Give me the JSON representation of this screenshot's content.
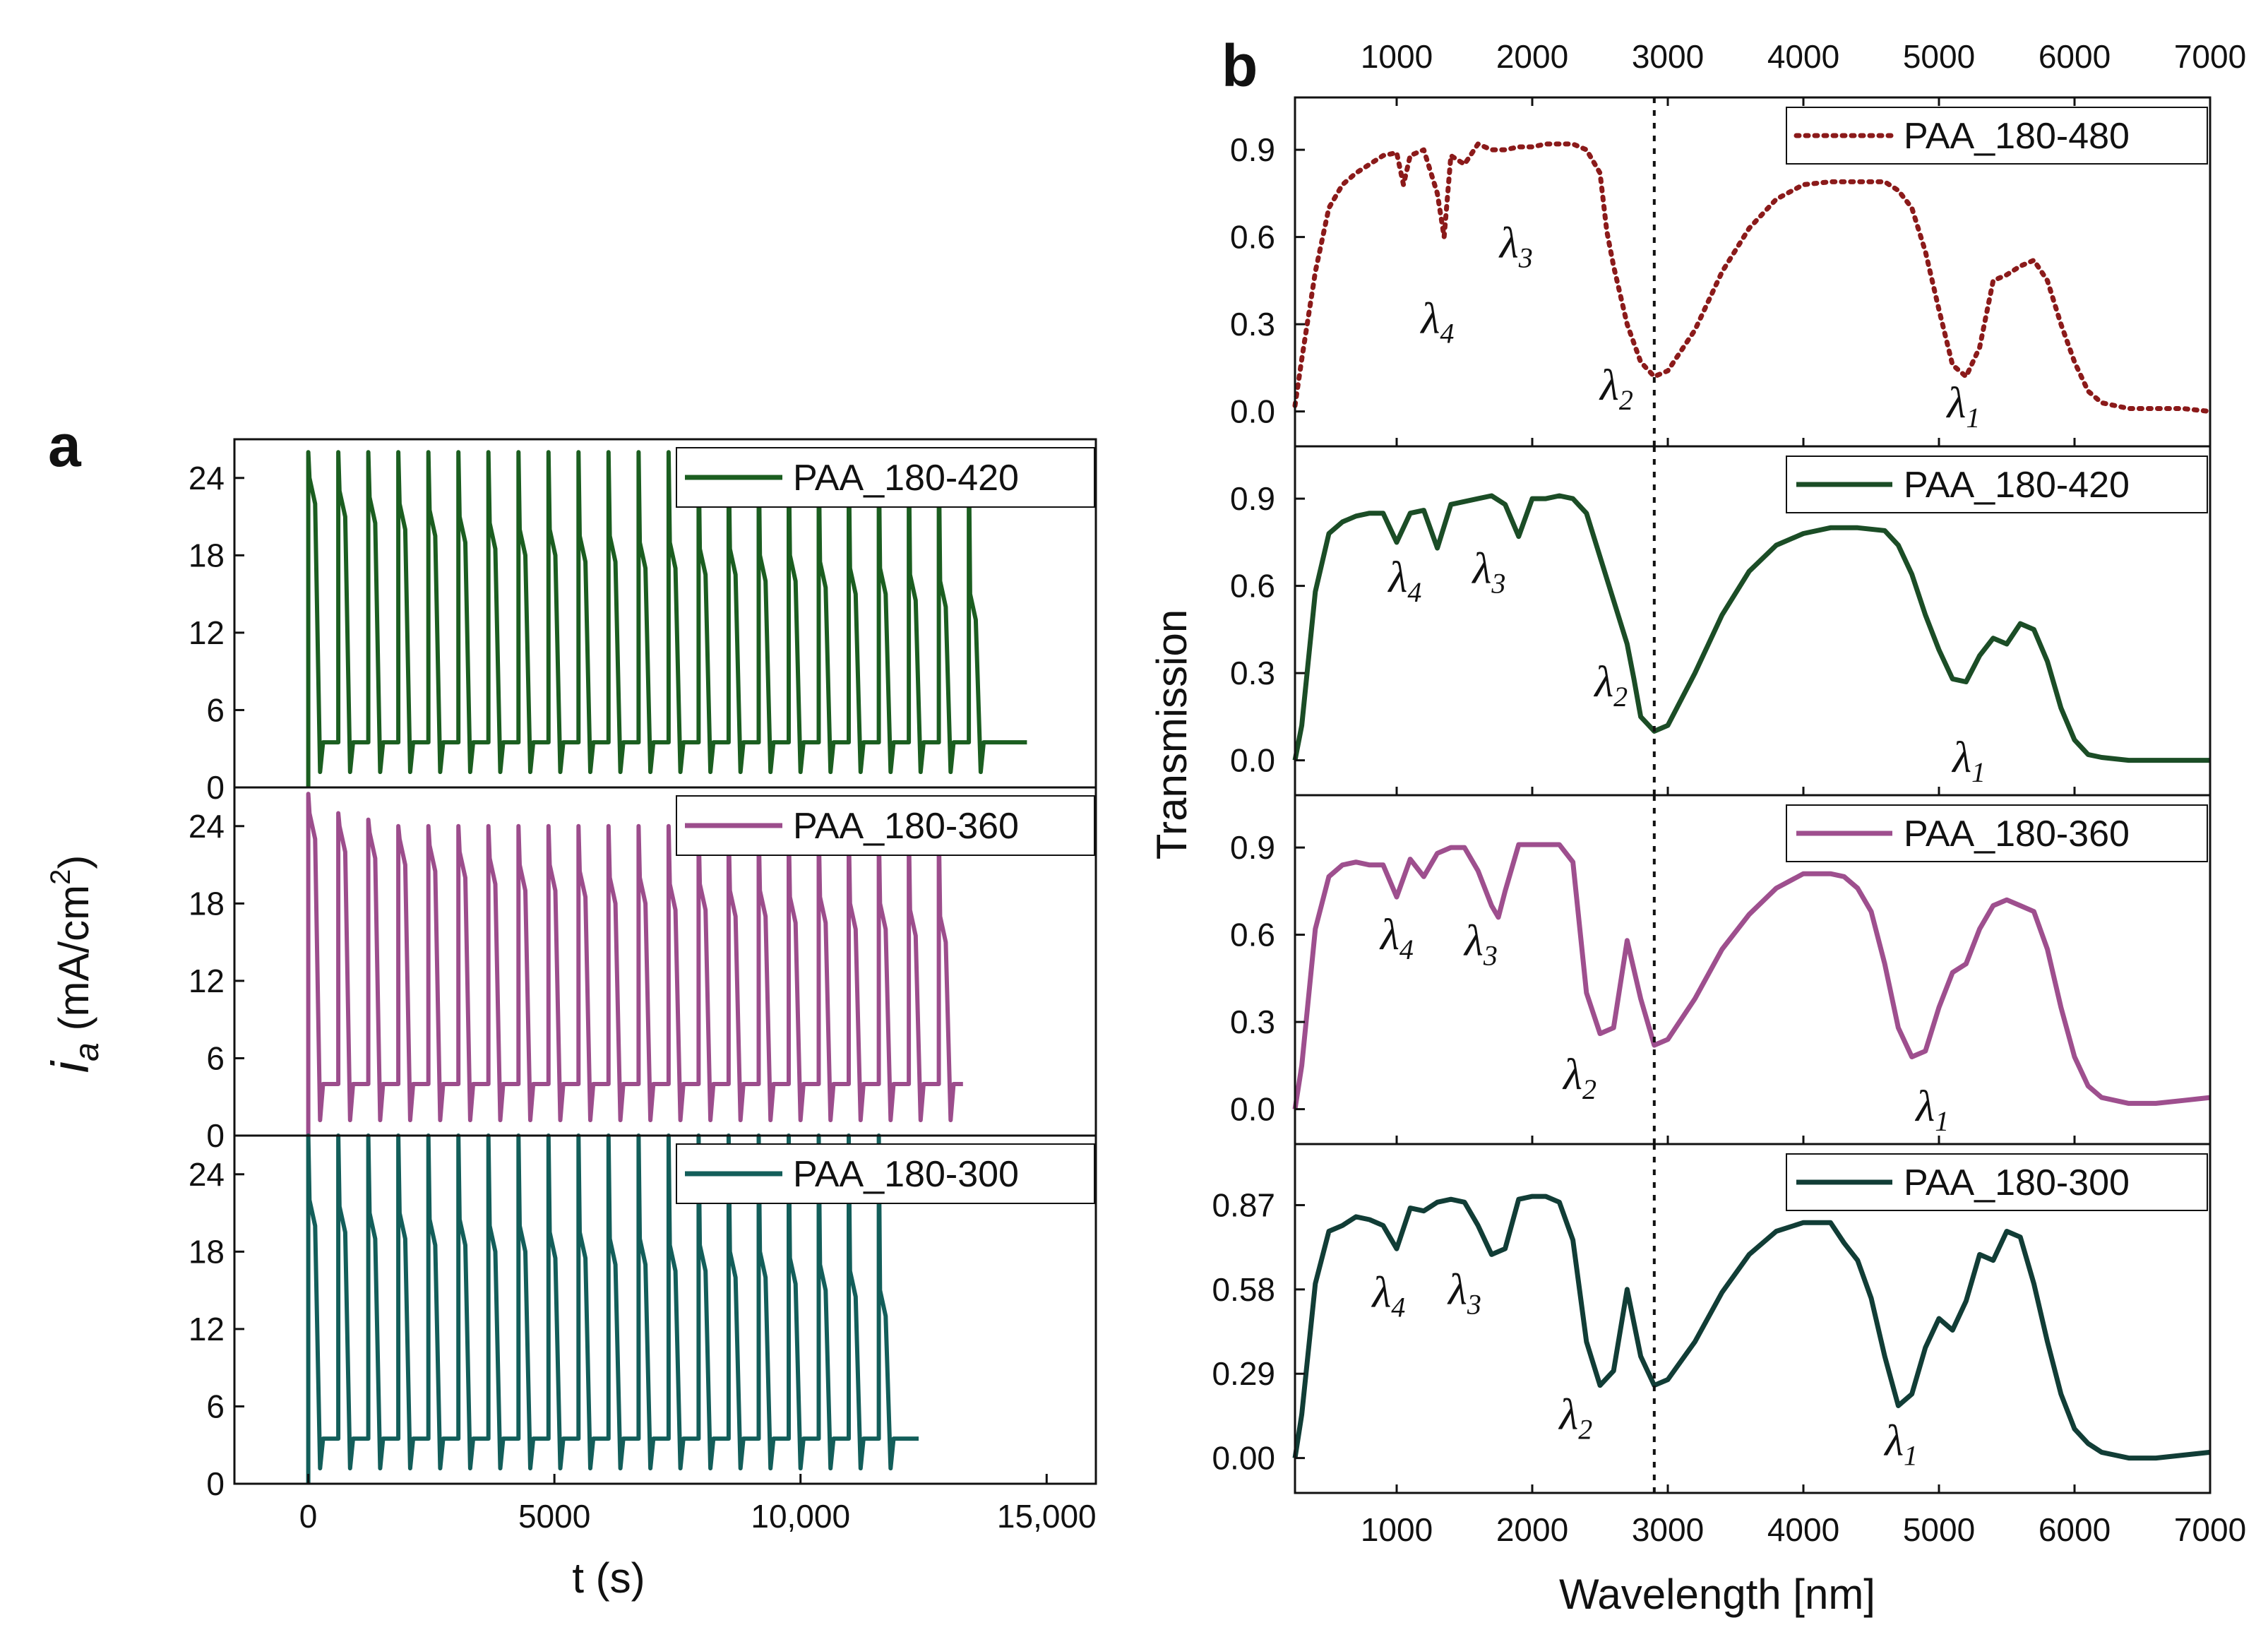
{
  "figure": {
    "label_a": "a",
    "label_b": "b"
  },
  "chart_data": [
    {
      "panel": "a",
      "type": "line",
      "xlabel": "t (s)",
      "ylabel": "i_a (mA/cm2)",
      "ylabel_parts": {
        "i": "i",
        "sub": "a",
        "unit": " (mA/cm",
        "sup": "2",
        "close": ")"
      },
      "xlim": [
        -1500,
        16000
      ],
      "xticks": [
        0,
        5000,
        10000,
        15000
      ],
      "xtick_labels": [
        "0",
        "5000",
        "10,000",
        "15,000"
      ],
      "subplots": [
        {
          "name": "PAA_180-420",
          "color": "#1b5e20",
          "ylim": [
            0,
            27
          ],
          "yticks": [
            0,
            6,
            12,
            18,
            24
          ],
          "pulse_period_s": 610,
          "pulse_count": 23,
          "end_time_s": 14600,
          "peak_values": [
            26,
            26,
            26,
            26,
            26,
            26,
            26,
            26,
            26,
            26,
            26,
            26,
            26,
            26,
            26,
            26,
            26,
            26,
            26,
            26,
            26,
            26,
            26
          ],
          "plateau_values": [
            22,
            21,
            20.5,
            20,
            19.5,
            19,
            18.5,
            18,
            18,
            17.5,
            17.5,
            17,
            17,
            16.5,
            16.5,
            16,
            16,
            15.5,
            15,
            15,
            14.5,
            14,
            13
          ],
          "baseline": 3.5
        },
        {
          "name": "PAA_180-360",
          "color": "#9c4d8c",
          "ylim": [
            0,
            27
          ],
          "yticks": [
            0,
            6,
            12,
            18,
            24
          ],
          "pulse_period_s": 610,
          "pulse_count": 22,
          "end_time_s": 13300,
          "peak_values": [
            26.5,
            25,
            24.5,
            24,
            24,
            24,
            24,
            24,
            24,
            24,
            24,
            24,
            24,
            24,
            24,
            24,
            24,
            24,
            24,
            24,
            24,
            24
          ],
          "plateau_values": [
            23,
            22,
            21.5,
            21,
            20.5,
            20,
            19.5,
            19,
            19,
            18.5,
            18,
            18,
            17.5,
            17.5,
            17,
            17,
            16.5,
            16.5,
            16,
            16,
            15.5,
            15
          ],
          "baseline": 4
        },
        {
          "name": "PAA_180-300",
          "color": "#135e5a",
          "ylim": [
            0,
            27
          ],
          "yticks": [
            0,
            6,
            12,
            18,
            24
          ],
          "pulse_period_s": 610,
          "pulse_count": 20,
          "end_time_s": 12400,
          "peak_values": [
            27,
            27,
            27,
            27,
            27,
            27,
            27,
            27,
            27,
            27,
            27,
            27,
            27,
            27,
            27,
            27,
            27,
            27,
            27,
            27
          ],
          "plateau_values": [
            20,
            19.5,
            19,
            19,
            18.5,
            18.5,
            18,
            18,
            17.5,
            17.5,
            17,
            17,
            16.5,
            16.5,
            16,
            16,
            15.5,
            15,
            14.5,
            13
          ],
          "baseline": 3.5
        }
      ]
    },
    {
      "panel": "b",
      "type": "line",
      "xlabel": "Wavelength [nm]",
      "ylabel": "Transmission",
      "xlim": [
        250,
        7000
      ],
      "xticks": [
        1000,
        2000,
        3000,
        4000,
        5000,
        6000,
        7000
      ],
      "xtick_labels": [
        "1000",
        "2000",
        "3000",
        "4000",
        "5000",
        "6000",
        "7000"
      ],
      "top_xtick_labels": [
        "1000",
        "2000",
        "3000",
        "4000",
        "5000",
        "6000",
        "7000"
      ],
      "dashed_reference_x": 2900,
      "subplots": [
        {
          "name": "PAA_180-480",
          "color": "#8b1a1a",
          "style": "dotted",
          "ylim": [
            -0.12,
            1.08
          ],
          "yticks": [
            0.0,
            0.3,
            0.6,
            0.9
          ],
          "ytick_labels": [
            "0.0",
            "0.3",
            "0.6",
            "0.9"
          ],
          "x": [
            250,
            300,
            400,
            500,
            600,
            700,
            800,
            900,
            1000,
            1050,
            1100,
            1200,
            1300,
            1350,
            1400,
            1500,
            1600,
            1700,
            1800,
            1900,
            2000,
            2100,
            2200,
            2300,
            2400,
            2500,
            2550,
            2600,
            2700,
            2800,
            2900,
            3000,
            3200,
            3400,
            3600,
            3800,
            4000,
            4200,
            4400,
            4600,
            4700,
            4800,
            4900,
            5000,
            5100,
            5200,
            5300,
            5400,
            5500,
            5600,
            5700,
            5800,
            5900,
            6000,
            6100,
            6200,
            6400,
            6600,
            6800,
            7000
          ],
          "y": [
            0.02,
            0.18,
            0.48,
            0.7,
            0.78,
            0.82,
            0.85,
            0.88,
            0.89,
            0.78,
            0.88,
            0.9,
            0.75,
            0.6,
            0.88,
            0.85,
            0.92,
            0.9,
            0.9,
            0.91,
            0.91,
            0.92,
            0.92,
            0.92,
            0.9,
            0.82,
            0.62,
            0.5,
            0.3,
            0.17,
            0.12,
            0.14,
            0.28,
            0.48,
            0.63,
            0.73,
            0.78,
            0.79,
            0.79,
            0.79,
            0.76,
            0.7,
            0.55,
            0.35,
            0.16,
            0.12,
            0.22,
            0.45,
            0.47,
            0.5,
            0.52,
            0.45,
            0.3,
            0.17,
            0.07,
            0.03,
            0.01,
            0.01,
            0.01,
            0.0
          ],
          "labels": [
            {
              "main": "λ",
              "sub": "4",
              "x": 1180,
              "y": 0.27
            },
            {
              "main": "λ",
              "sub": "3",
              "x": 1760,
              "y": 0.53
            },
            {
              "main": "λ",
              "sub": "2",
              "x": 2500,
              "y": 0.04
            },
            {
              "main": "λ",
              "sub": "1",
              "x": 5060,
              "y": -0.02
            }
          ]
        },
        {
          "name": "PAA_180-420",
          "color": "#1b4d26",
          "style": "solid",
          "ylim": [
            -0.12,
            1.08
          ],
          "yticks": [
            0.0,
            0.3,
            0.6,
            0.9
          ],
          "ytick_labels": [
            "0.0",
            "0.3",
            "0.6",
            "0.9"
          ],
          "x": [
            250,
            300,
            400,
            500,
            600,
            700,
            800,
            900,
            1000,
            1100,
            1200,
            1300,
            1400,
            1500,
            1600,
            1700,
            1800,
            1900,
            2000,
            2100,
            2200,
            2300,
            2400,
            2500,
            2600,
            2700,
            2750,
            2800,
            2900,
            3000,
            3200,
            3400,
            3600,
            3800,
            4000,
            4200,
            4400,
            4600,
            4700,
            4800,
            4900,
            5000,
            5100,
            5200,
            5300,
            5400,
            5500,
            5600,
            5700,
            5800,
            5900,
            6000,
            6100,
            6200,
            6400,
            6600,
            6800,
            7000
          ],
          "y": [
            0.0,
            0.12,
            0.58,
            0.78,
            0.82,
            0.84,
            0.85,
            0.85,
            0.75,
            0.85,
            0.86,
            0.73,
            0.88,
            0.89,
            0.9,
            0.91,
            0.88,
            0.77,
            0.9,
            0.9,
            0.91,
            0.9,
            0.85,
            0.7,
            0.55,
            0.4,
            0.28,
            0.15,
            0.1,
            0.12,
            0.3,
            0.5,
            0.65,
            0.74,
            0.78,
            0.8,
            0.8,
            0.79,
            0.74,
            0.64,
            0.5,
            0.38,
            0.28,
            0.27,
            0.36,
            0.42,
            0.4,
            0.47,
            0.45,
            0.34,
            0.18,
            0.07,
            0.02,
            0.01,
            0.0,
            0.0,
            0.0,
            0.0
          ],
          "labels": [
            {
              "main": "λ",
              "sub": "4",
              "x": 940,
              "y": 0.58
            },
            {
              "main": "λ",
              "sub": "3",
              "x": 1560,
              "y": 0.61
            },
            {
              "main": "λ",
              "sub": "2",
              "x": 2460,
              "y": 0.22
            },
            {
              "main": "λ",
              "sub": "1",
              "x": 5100,
              "y": -0.04
            }
          ]
        },
        {
          "name": "PAA_180-360",
          "color": "#9e4f8e",
          "style": "solid",
          "ylim": [
            -0.12,
            1.08
          ],
          "yticks": [
            0.0,
            0.3,
            0.6,
            0.9
          ],
          "ytick_labels": [
            "0.0",
            "0.3",
            "0.6",
            "0.9"
          ],
          "x": [
            250,
            300,
            400,
            500,
            600,
            700,
            800,
            900,
            1000,
            1100,
            1200,
            1300,
            1400,
            1500,
            1600,
            1700,
            1750,
            1800,
            1900,
            2000,
            2100,
            2200,
            2300,
            2400,
            2500,
            2600,
            2700,
            2800,
            2900,
            3000,
            3200,
            3400,
            3600,
            3800,
            4000,
            4200,
            4300,
            4400,
            4500,
            4600,
            4700,
            4800,
            4900,
            5000,
            5100,
            5200,
            5300,
            5400,
            5500,
            5600,
            5700,
            5800,
            5900,
            6000,
            6100,
            6200,
            6400,
            6600,
            6800,
            7000
          ],
          "y": [
            0.0,
            0.15,
            0.62,
            0.8,
            0.84,
            0.85,
            0.84,
            0.84,
            0.73,
            0.86,
            0.8,
            0.88,
            0.9,
            0.9,
            0.82,
            0.7,
            0.66,
            0.75,
            0.91,
            0.91,
            0.91,
            0.91,
            0.85,
            0.4,
            0.26,
            0.28,
            0.58,
            0.38,
            0.22,
            0.24,
            0.38,
            0.55,
            0.67,
            0.76,
            0.81,
            0.81,
            0.8,
            0.76,
            0.68,
            0.5,
            0.28,
            0.18,
            0.2,
            0.35,
            0.47,
            0.5,
            0.62,
            0.7,
            0.72,
            0.7,
            0.68,
            0.55,
            0.35,
            0.18,
            0.08,
            0.04,
            0.02,
            0.02,
            0.03,
            0.04
          ],
          "labels": [
            {
              "main": "λ",
              "sub": "4",
              "x": 880,
              "y": 0.55
            },
            {
              "main": "λ",
              "sub": "3",
              "x": 1500,
              "y": 0.53
            },
            {
              "main": "λ",
              "sub": "2",
              "x": 2230,
              "y": 0.07
            },
            {
              "main": "λ",
              "sub": "1",
              "x": 4830,
              "y": -0.04
            }
          ]
        },
        {
          "name": "PAA_180-300",
          "color": "#113d36",
          "style": "solid",
          "ylim": [
            -0.12,
            1.08
          ],
          "yticks": [
            0.0,
            0.29,
            0.58,
            0.87
          ],
          "ytick_labels": [
            "0.00",
            "0.29",
            "0.58",
            "0.87"
          ],
          "x": [
            250,
            300,
            400,
            500,
            600,
            700,
            800,
            900,
            1000,
            1100,
            1200,
            1300,
            1400,
            1500,
            1600,
            1700,
            1800,
            1900,
            2000,
            2100,
            2200,
            2300,
            2400,
            2500,
            2600,
            2700,
            2800,
            2900,
            3000,
            3200,
            3400,
            3600,
            3800,
            4000,
            4200,
            4300,
            4400,
            4500,
            4600,
            4700,
            4800,
            4900,
            5000,
            5100,
            5200,
            5300,
            5400,
            5500,
            5600,
            5700,
            5800,
            5900,
            6000,
            6100,
            6200,
            6400,
            6600,
            6800,
            7000
          ],
          "y": [
            0.0,
            0.15,
            0.6,
            0.78,
            0.8,
            0.83,
            0.82,
            0.8,
            0.72,
            0.86,
            0.85,
            0.88,
            0.89,
            0.88,
            0.8,
            0.7,
            0.72,
            0.89,
            0.9,
            0.9,
            0.88,
            0.75,
            0.4,
            0.25,
            0.3,
            0.58,
            0.35,
            0.25,
            0.27,
            0.4,
            0.57,
            0.7,
            0.78,
            0.81,
            0.81,
            0.74,
            0.68,
            0.55,
            0.35,
            0.18,
            0.22,
            0.38,
            0.48,
            0.44,
            0.54,
            0.7,
            0.68,
            0.78,
            0.76,
            0.6,
            0.4,
            0.22,
            0.1,
            0.05,
            0.02,
            0.0,
            0.0,
            0.01,
            0.02
          ],
          "labels": [
            {
              "main": "λ",
              "sub": "4",
              "x": 820,
              "y": 0.52
            },
            {
              "main": "λ",
              "sub": "3",
              "x": 1380,
              "y": 0.53
            },
            {
              "main": "λ",
              "sub": "2",
              "x": 2200,
              "y": 0.1
            },
            {
              "main": "λ",
              "sub": "1",
              "x": 4600,
              "y": 0.01
            }
          ]
        }
      ]
    }
  ]
}
